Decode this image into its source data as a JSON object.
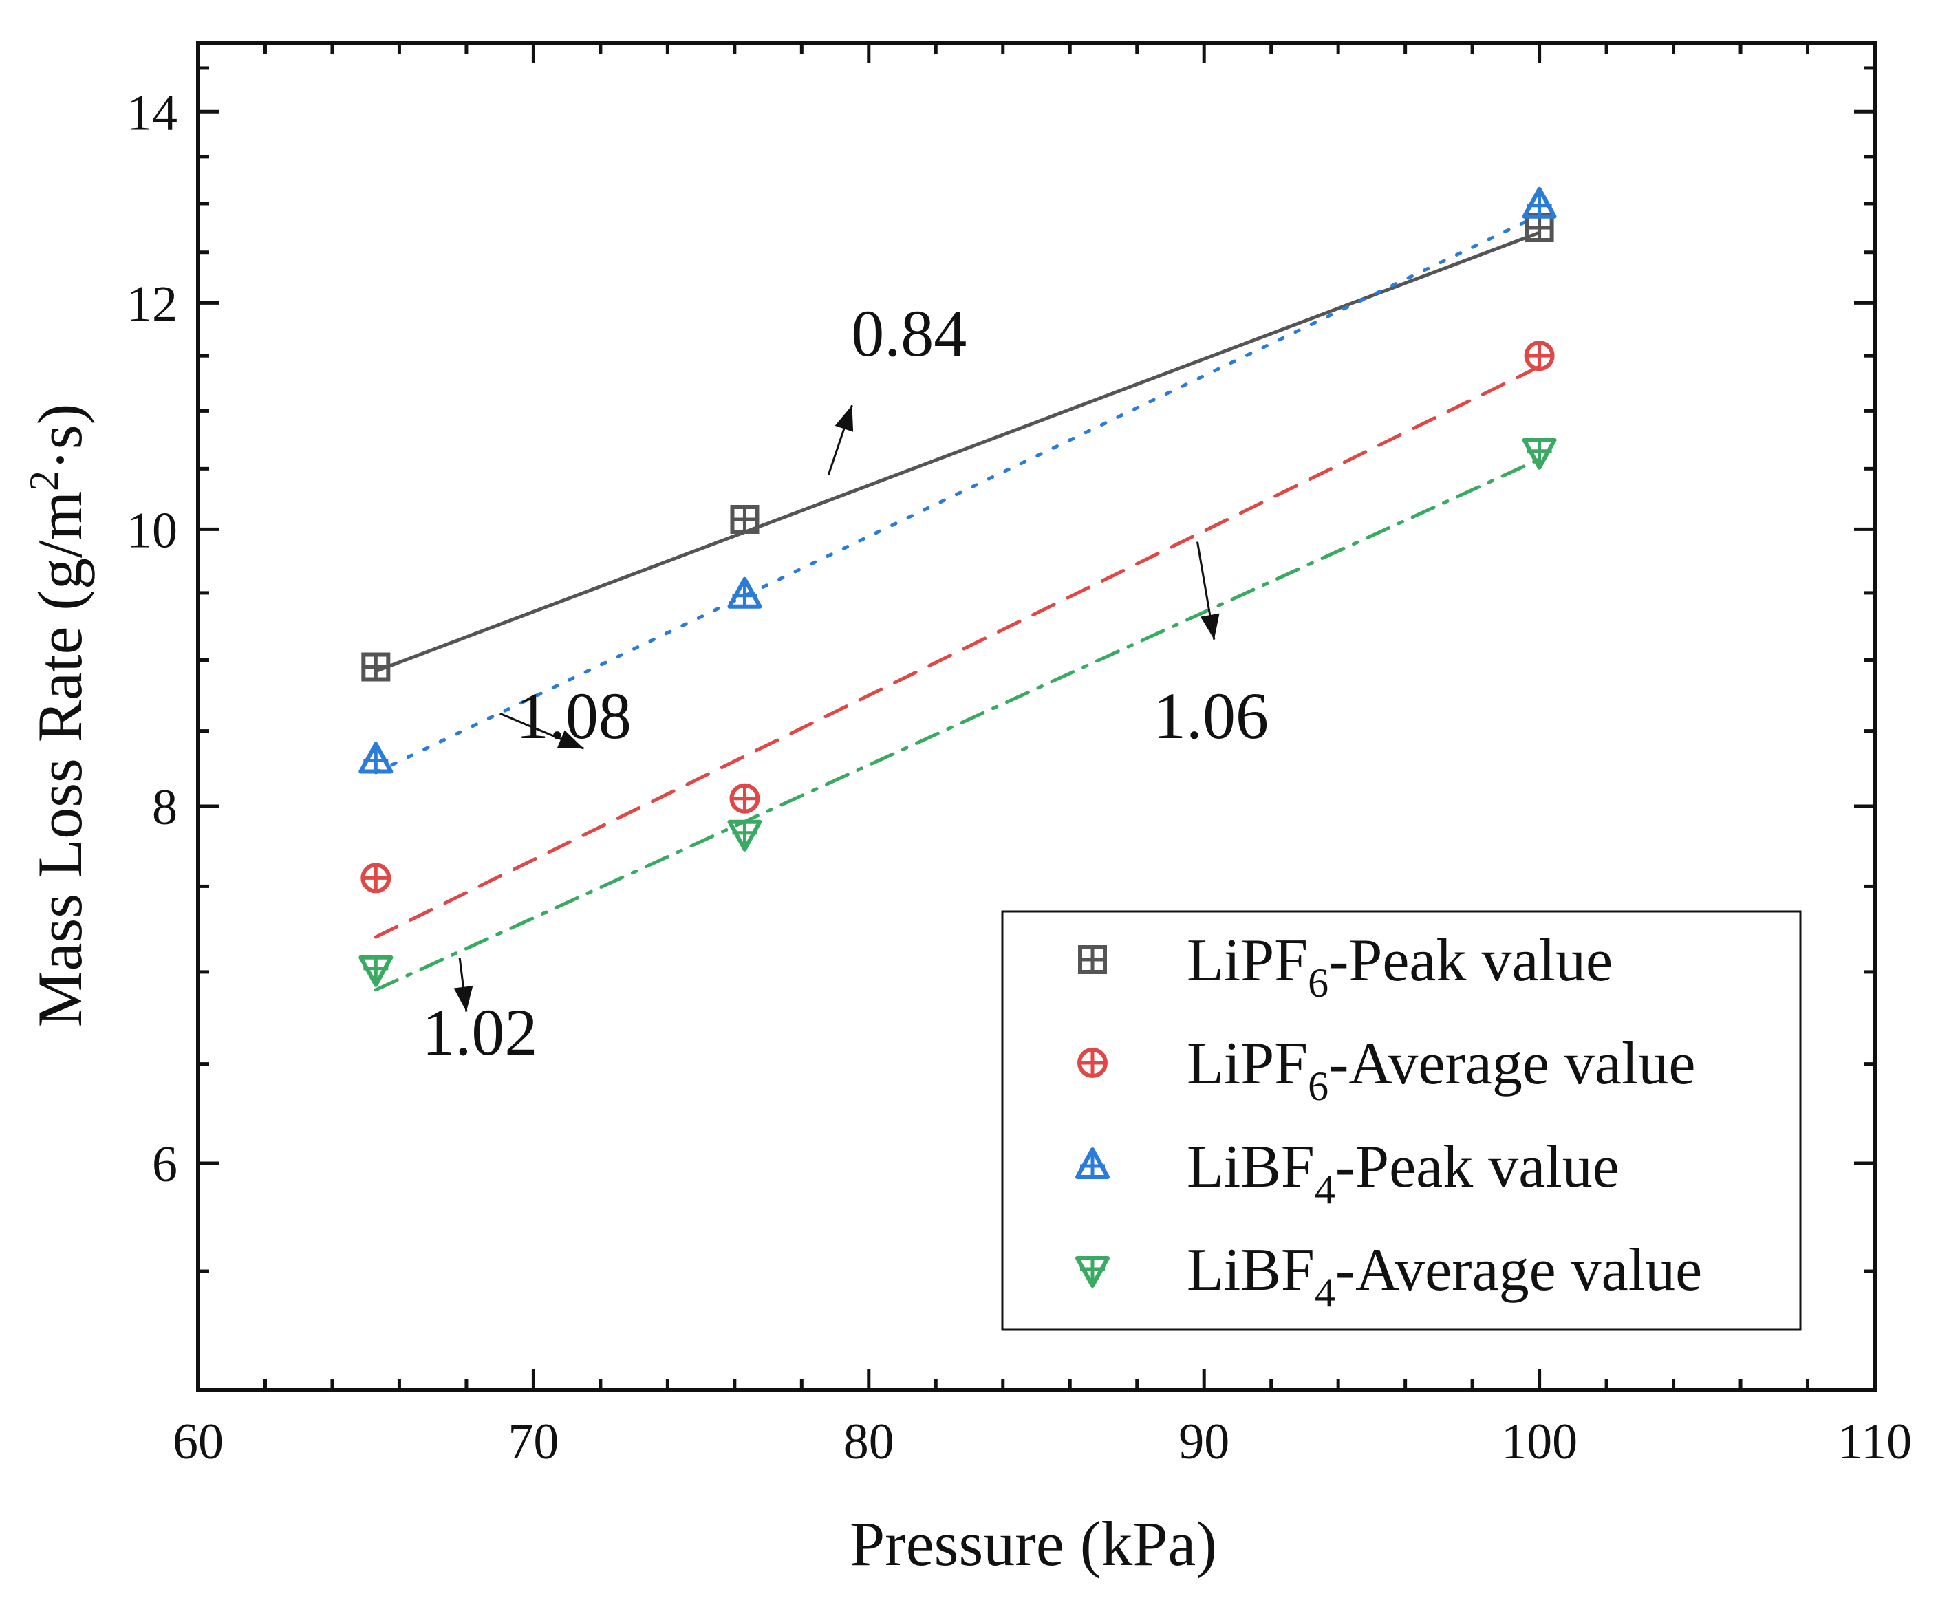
{
  "chart_data": {
    "type": "scatter",
    "title": "",
    "xlabel": "Pressure (kPa)",
    "ylabel_parts": {
      "main": "Mass Loss Rate (g/m",
      "sup": "2",
      "tail": "·s)"
    },
    "xlim": [
      60,
      110
    ],
    "ylim": [
      5.0,
      14.8
    ],
    "y_scale": "log",
    "x_ticks": [
      60,
      70,
      80,
      90,
      100,
      110
    ],
    "y_ticks": [
      6,
      8,
      10,
      12,
      14
    ],
    "x_tick_labels": [
      "60",
      "70",
      "80",
      "90",
      "100",
      "110"
    ],
    "y_tick_labels": [
      "6",
      "8",
      "10",
      "12",
      "14"
    ],
    "x": [
      65.3,
      76.3,
      100.0
    ],
    "series": [
      {
        "name": "LiPF6-Peak value",
        "label_parts": [
          "LiPF",
          "6",
          "-Peak value"
        ],
        "marker": "square-plus",
        "color": "#555555",
        "line": "solid",
        "values": [
          8.95,
          10.08,
          12.75
        ],
        "fit_start": [
          65.3,
          8.92
        ],
        "fit_end": [
          100.0,
          12.7
        ]
      },
      {
        "name": "LiPF6-Average value",
        "label_parts": [
          "LiPF",
          "6",
          "-Average value"
        ],
        "marker": "circle-plus",
        "color": "#e04848",
        "line": "dash",
        "values": [
          7.55,
          8.05,
          11.5
        ],
        "fit_start": [
          65.3,
          7.2
        ],
        "fit_end": [
          100.0,
          11.4
        ]
      },
      {
        "name": "LiBF4-Peak value",
        "label_parts": [
          "LiBF",
          "4",
          "-Peak value"
        ],
        "marker": "triangle-up",
        "color": "#2b7bd8",
        "line": "dot",
        "values": [
          8.3,
          9.48,
          12.98
        ],
        "fit_start": [
          65.3,
          8.22
        ],
        "fit_end": [
          100.0,
          12.88
        ]
      },
      {
        "name": "LiBF4-Average value",
        "label_parts": [
          "LiBF",
          "4",
          "-Average value"
        ],
        "marker": "triangle-down",
        "color": "#3aaa62",
        "line": "dashdot",
        "values": [
          7.02,
          7.83,
          10.65
        ],
        "fit_start": [
          65.3,
          6.9
        ],
        "fit_end": [
          100.0,
          10.58
        ]
      }
    ],
    "annotations": [
      {
        "text": "0.84",
        "text_at": [
          81.2,
          11.5
        ],
        "arrow_from": [
          78.8,
          10.45
        ],
        "arrow_to": [
          79.5,
          11.05
        ]
      },
      {
        "text": "1.08",
        "text_at": [
          71.2,
          8.45
        ],
        "arrow_from": [
          69.0,
          8.62
        ],
        "arrow_to": [
          71.5,
          8.38
        ]
      },
      {
        "text": "1.06",
        "text_at": [
          90.2,
          8.45
        ],
        "arrow_from": [
          89.8,
          9.9
        ],
        "arrow_to": [
          90.3,
          9.15
        ]
      },
      {
        "text": "1.02",
        "text_at": [
          68.4,
          6.55
        ],
        "arrow_from": [
          67.8,
          7.08
        ],
        "arrow_to": [
          68.0,
          6.78
        ]
      }
    ],
    "legend_position": "bottom-right"
  }
}
